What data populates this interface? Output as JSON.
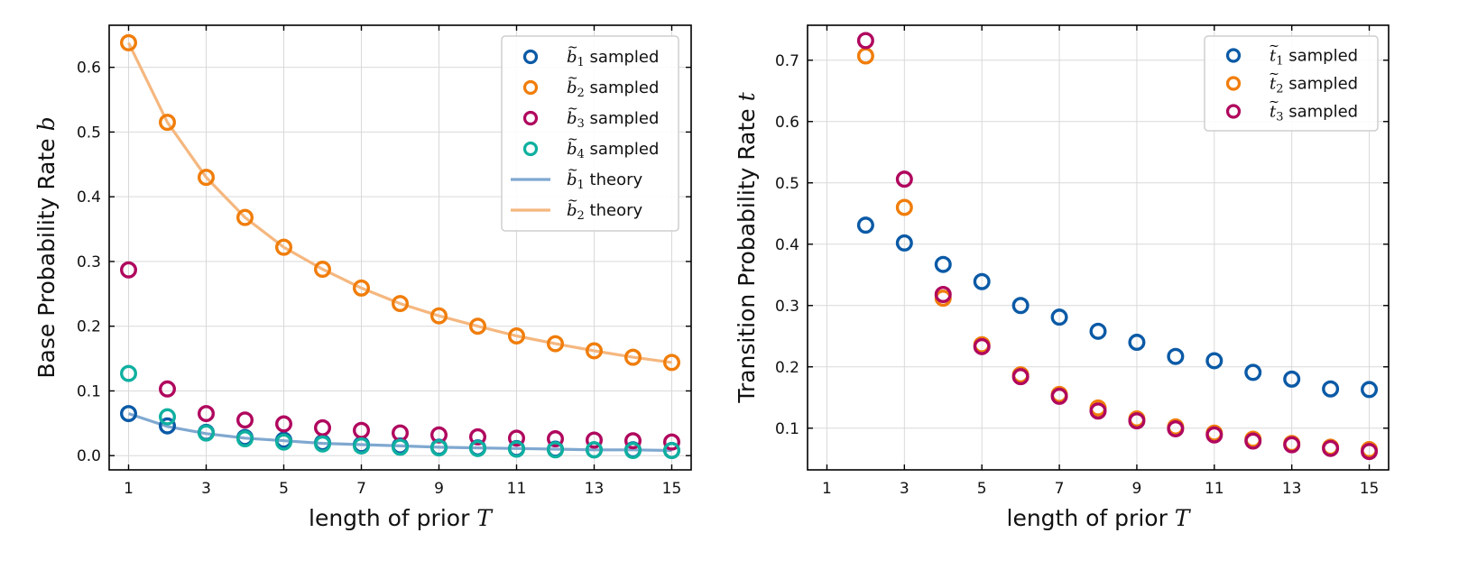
{
  "chart_data": [
    {
      "type": "scatter",
      "x_ticks": [
        1,
        3,
        5,
        7,
        9,
        11,
        13,
        15
      ],
      "y_ticks": [
        0.0,
        0.1,
        0.2,
        0.3,
        0.4,
        0.5,
        0.6
      ],
      "y_tick_labels": [
        "0.0",
        "0.1",
        "0.2",
        "0.3",
        "0.4",
        "0.5",
        "0.6"
      ],
      "xlim": [
        0.5,
        15.5
      ],
      "ylim": [
        -0.022,
        0.665
      ],
      "grid": true,
      "legend_position": "top-right",
      "xlabel_text": "length of prior ",
      "xlabel_var": "T",
      "ylabel_text": "Base Probability Rate ",
      "ylabel_var": "b",
      "series": [
        {
          "symbol": "b",
          "sub": "1",
          "label": " sampled",
          "color": "#0a5aa6",
          "kind": "scatter",
          "x": [
            1,
            2,
            3,
            4,
            5,
            6,
            7,
            8,
            9,
            10,
            11,
            12,
            13,
            14,
            15
          ],
          "y": [
            0.065,
            0.046,
            0.036,
            0.028,
            0.024,
            0.02,
            0.017,
            0.015,
            0.013,
            0.012,
            0.011,
            0.01,
            0.009,
            0.009,
            0.008
          ]
        },
        {
          "symbol": "b",
          "sub": "2",
          "label": " sampled",
          "color": "#f07d0a",
          "kind": "scatter",
          "x": [
            1,
            2,
            3,
            4,
            5,
            6,
            7,
            8,
            9,
            10,
            11,
            12,
            13,
            14,
            15
          ],
          "y": [
            0.638,
            0.515,
            0.43,
            0.368,
            0.322,
            0.288,
            0.259,
            0.235,
            0.216,
            0.2,
            0.185,
            0.173,
            0.162,
            0.152,
            0.144
          ]
        },
        {
          "symbol": "b",
          "sub": "3",
          "label": " sampled",
          "color": "#b0075e",
          "kind": "scatter",
          "x": [
            1,
            2,
            3,
            4,
            5,
            6,
            7,
            8,
            9,
            10,
            11,
            12,
            13,
            14,
            15
          ],
          "y": [
            0.287,
            0.103,
            0.065,
            0.055,
            0.049,
            0.043,
            0.039,
            0.035,
            0.032,
            0.029,
            0.027,
            0.026,
            0.024,
            0.023,
            0.021
          ]
        },
        {
          "symbol": "b",
          "sub": "4",
          "label": " sampled",
          "color": "#0fb0a0",
          "kind": "scatter",
          "x": [
            1,
            2,
            3,
            4,
            5,
            6,
            7,
            8,
            9,
            10,
            11,
            12,
            13,
            14,
            15
          ],
          "y": [
            0.127,
            0.06,
            0.035,
            0.026,
            0.021,
            0.018,
            0.015,
            0.013,
            0.012,
            0.011,
            0.01,
            0.009,
            0.009,
            0.008,
            0.008
          ]
        },
        {
          "symbol": "b",
          "sub": "1",
          "label": " theory",
          "color": "#7fa8d0",
          "kind": "line",
          "x": [
            1,
            2,
            3,
            4,
            5,
            6,
            7,
            8,
            9,
            10,
            11,
            12,
            13,
            14,
            15
          ],
          "y": [
            0.065,
            0.045,
            0.034,
            0.027,
            0.023,
            0.019,
            0.017,
            0.015,
            0.013,
            0.012,
            0.011,
            0.01,
            0.009,
            0.009,
            0.008
          ]
        },
        {
          "symbol": "b",
          "sub": "2",
          "label": " theory",
          "color": "#f5b77f",
          "kind": "line",
          "x": [
            1,
            2,
            3,
            4,
            5,
            6,
            7,
            8,
            9,
            10,
            11,
            12,
            13,
            14,
            15
          ],
          "y": [
            0.638,
            0.515,
            0.43,
            0.368,
            0.322,
            0.288,
            0.259,
            0.235,
            0.216,
            0.2,
            0.185,
            0.173,
            0.162,
            0.152,
            0.144
          ]
        }
      ]
    },
    {
      "type": "scatter",
      "x_ticks": [
        1,
        3,
        5,
        7,
        9,
        11,
        13,
        15
      ],
      "y_ticks": [
        0.1,
        0.2,
        0.3,
        0.4,
        0.5,
        0.6,
        0.7
      ],
      "y_tick_labels": [
        "0.1",
        "0.2",
        "0.3",
        "0.4",
        "0.5",
        "0.6",
        "0.7"
      ],
      "xlim": [
        0.5,
        15.5
      ],
      "ylim": [
        0.032,
        0.757
      ],
      "grid": true,
      "legend_position": "top-right",
      "xlabel_text": "length of prior ",
      "xlabel_var": "T",
      "ylabel_text": "Transition Probability Rate ",
      "ylabel_var": "t",
      "series": [
        {
          "symbol": "t",
          "sub": "1",
          "label": " sampled",
          "color": "#0a5aa6",
          "kind": "scatter",
          "x": [
            2,
            3,
            4,
            5,
            6,
            7,
            8,
            9,
            10,
            11,
            12,
            13,
            14,
            15
          ],
          "y": [
            0.431,
            0.402,
            0.367,
            0.339,
            0.3,
            0.281,
            0.258,
            0.24,
            0.217,
            0.21,
            0.191,
            0.18,
            0.164,
            0.163
          ]
        },
        {
          "symbol": "t",
          "sub": "2",
          "label": " sampled",
          "color": "#f07d0a",
          "kind": "scatter",
          "x": [
            2,
            3,
            4,
            5,
            6,
            7,
            8,
            9,
            10,
            11,
            12,
            13,
            14,
            15
          ],
          "y": [
            0.707,
            0.46,
            0.312,
            0.236,
            0.187,
            0.155,
            0.133,
            0.115,
            0.102,
            0.092,
            0.082,
            0.075,
            0.069,
            0.065
          ]
        },
        {
          "symbol": "t",
          "sub": "3",
          "label": " sampled",
          "color": "#b0075e",
          "kind": "scatter",
          "x": [
            2,
            3,
            4,
            5,
            6,
            7,
            8,
            9,
            10,
            11,
            12,
            13,
            14,
            15
          ],
          "y": [
            0.732,
            0.506,
            0.318,
            0.233,
            0.184,
            0.152,
            0.128,
            0.112,
            0.099,
            0.089,
            0.079,
            0.073,
            0.067,
            0.062
          ]
        }
      ]
    }
  ]
}
